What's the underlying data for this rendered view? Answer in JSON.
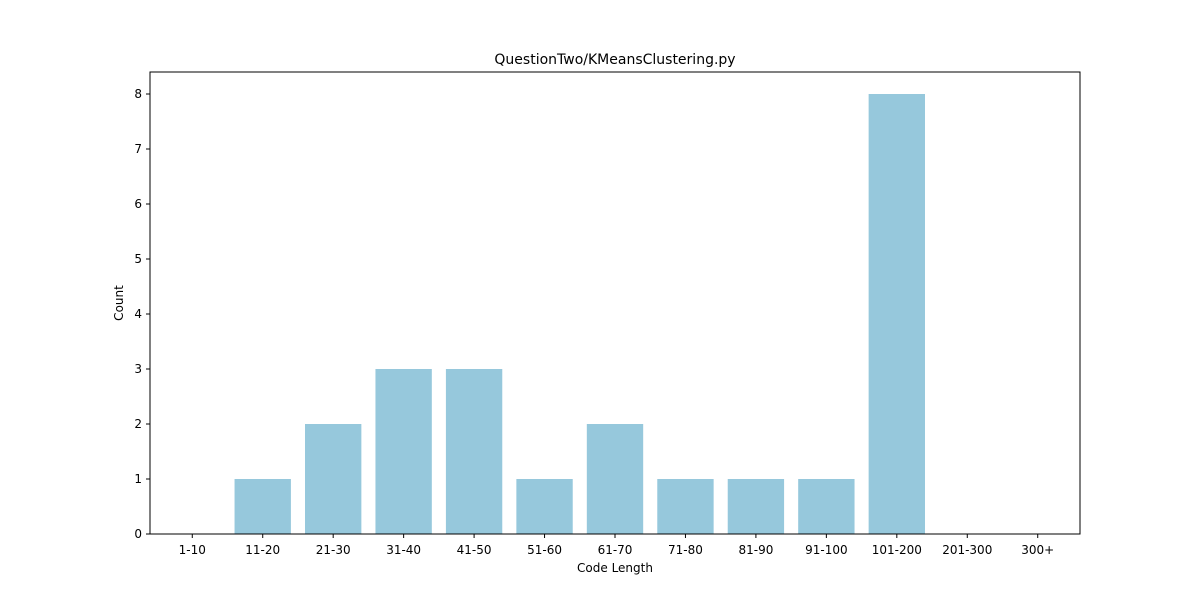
{
  "chart_data": {
    "type": "bar",
    "title": "QuestionTwo/KMeansClustering.py",
    "xlabel": "Code Length",
    "ylabel": "Count",
    "categories": [
      "1-10",
      "11-20",
      "21-30",
      "31-40",
      "41-50",
      "51-60",
      "61-70",
      "71-80",
      "81-90",
      "91-100",
      "101-200",
      "201-300",
      "300+"
    ],
    "values": [
      0,
      1,
      2,
      3,
      3,
      1,
      2,
      1,
      1,
      1,
      8,
      0,
      0
    ],
    "ylim": [
      0,
      8.4
    ],
    "yticks": [
      0,
      1,
      2,
      3,
      4,
      5,
      6,
      7,
      8
    ],
    "bar_color": "#96c8dc",
    "grid": false,
    "legend": "none"
  }
}
